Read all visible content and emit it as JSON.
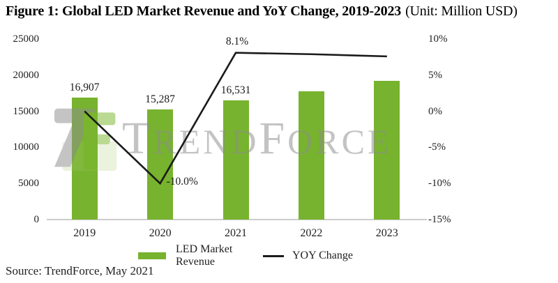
{
  "title": {
    "main": "Figure 1: Global LED Market Revenue and YoY Change, 2019-2023",
    "unit": "(Unit: Million USD)"
  },
  "source": "Source: TrendForce, May 2021",
  "watermark": {
    "text": "TrendForce"
  },
  "colors": {
    "bar_green": "#77b32e",
    "line_black": "#1a1a1a",
    "watermark_gray": "#8d8d8d",
    "baseline_gray": "#cccccc"
  },
  "legend": [
    {
      "label": "LED Market Revenue",
      "swatch": "bar",
      "color": "#77b32e"
    },
    {
      "label": "YOY Change",
      "swatch": "line",
      "color": "#1a1a1a"
    }
  ],
  "chart_data": {
    "type": "bar",
    "combo": true,
    "title": "Figure 1: Global LED Market Revenue and YoY Change, 2019-2023 (Unit: Million USD)",
    "categories": [
      "2019",
      "2020",
      "2021",
      "2022",
      "2023"
    ],
    "series": [
      {
        "name": "LED Market Revenue",
        "type": "bar",
        "axis": "left",
        "color": "#77b32e",
        "values": [
          16907,
          15287,
          16531,
          17800,
          19200
        ],
        "labels": [
          "16,907",
          "15,287",
          "16,531",
          "",
          ""
        ]
      },
      {
        "name": "YOY Change",
        "type": "line",
        "axis": "right",
        "color": "#1a1a1a",
        "values": [
          0.0,
          -10.0,
          8.1,
          7.9,
          7.6
        ],
        "labels": [
          "",
          "-10.0%",
          "8.1%",
          "",
          ""
        ]
      }
    ],
    "left_axis": {
      "min": 0,
      "max": 25000,
      "ticks": [
        0,
        5000,
        10000,
        15000,
        20000,
        25000
      ],
      "tick_labels": [
        "0",
        "5000",
        "10000",
        "15000",
        "20000",
        "25000"
      ]
    },
    "right_axis": {
      "min": -15,
      "max": 10,
      "ticks": [
        -15,
        -10,
        -5,
        0,
        5,
        10
      ],
      "tick_labels": [
        "-15%",
        "-10%",
        "-5%",
        "0%",
        "5%",
        "10%"
      ]
    },
    "grid": false,
    "legend_position": "bottom"
  }
}
